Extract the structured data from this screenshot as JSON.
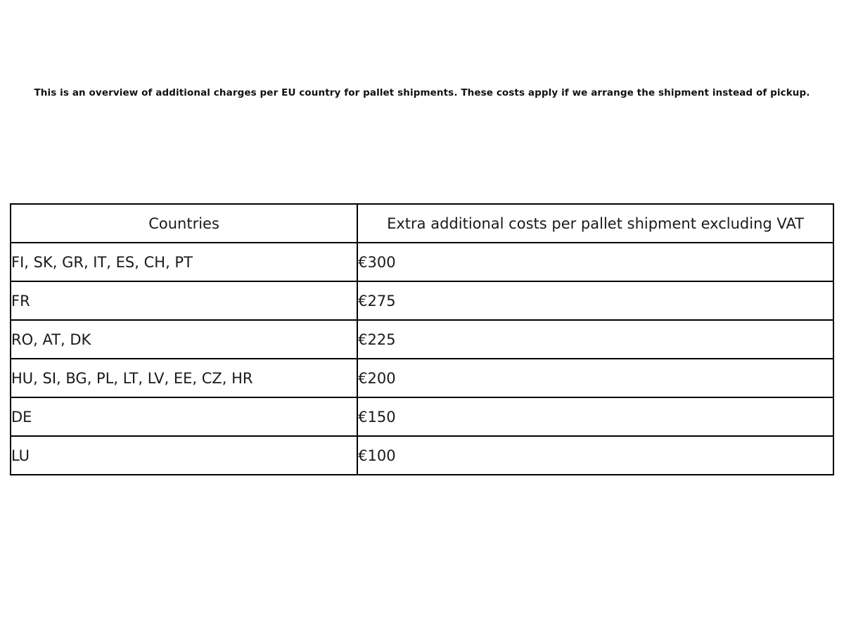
{
  "intro": {
    "text": "This is an overview of additional charges per EU country for pallet shipments. These costs apply if we arrange the shipment instead of pickup."
  },
  "table": {
    "headers": [
      "Countries",
      "Extra additional costs per pallet shipment excluding VAT"
    ],
    "rows": [
      {
        "countries": "FI, SK, GR, IT, ES, CH, PT",
        "cost": "€300"
      },
      {
        "countries": "FR",
        "cost": "€275"
      },
      {
        "countries": "RO, AT, DK",
        "cost": "€225"
      },
      {
        "countries": "HU, SI, BG, PL, LT, LV, EE, CZ, HR",
        "cost": "€200"
      },
      {
        "countries": "DE",
        "cost": "€150"
      },
      {
        "countries": "LU",
        "cost": "€100"
      }
    ]
  },
  "colors": {
    "background": "#ffffff",
    "border": "#000000",
    "text": "#1a1a1a"
  }
}
